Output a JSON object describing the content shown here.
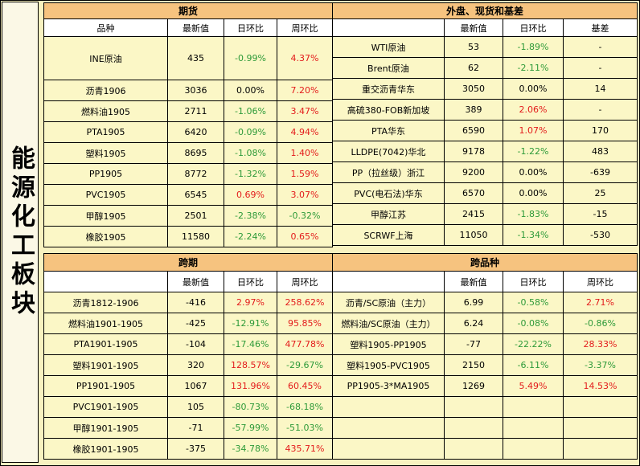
{
  "side_title": "能源化工板块",
  "futures": {
    "title": "期货",
    "columns": [
      "品种",
      "最新值",
      "日环比",
      "周环比"
    ],
    "rows": [
      [
        "INE原油",
        "435",
        "-0.99%",
        "4.37%"
      ],
      [
        "沥青1906",
        "3036",
        "0.00%",
        "7.20%"
      ],
      [
        "燃料油1905",
        "2711",
        "-1.06%",
        "3.47%"
      ],
      [
        "PTA1905",
        "6420",
        "-0.09%",
        "4.94%"
      ],
      [
        "塑料1905",
        "8695",
        "-1.08%",
        "1.40%"
      ],
      [
        "PP1905",
        "8772",
        "-1.32%",
        "1.59%"
      ],
      [
        "PVC1905",
        "6545",
        "0.69%",
        "3.07%"
      ],
      [
        "甲醇1905",
        "2501",
        "-2.38%",
        "-0.32%"
      ],
      [
        "橡胶1905",
        "11580",
        "-2.24%",
        "0.65%"
      ]
    ]
  },
  "spot": {
    "title": "外盘、现货和基差",
    "columns": [
      "",
      "最新值",
      "日环比",
      "基差"
    ],
    "rows": [
      [
        "WTI原油",
        "53",
        "-1.89%",
        "-"
      ],
      [
        "Brent原油",
        "62",
        "-2.11%",
        "-"
      ],
      [
        "重交沥青华东",
        "3050",
        "0.00%",
        "14"
      ],
      [
        "高硫380-FOB新加坡",
        "389",
        "2.06%",
        "-"
      ],
      [
        "PTA华东",
        "6590",
        "1.07%",
        "170"
      ],
      [
        "LLDPE(7042)华北",
        "9178",
        "-1.22%",
        "483"
      ],
      [
        "PP（拉丝级）浙江",
        "9200",
        "0.00%",
        "-639"
      ],
      [
        "PVC(电石法)华东",
        "6570",
        "0.00%",
        "25"
      ],
      [
        "甲醇江苏",
        "2415",
        "-1.83%",
        "-15"
      ],
      [
        "SCRWF上海",
        "11050",
        "-1.34%",
        "-530"
      ]
    ]
  },
  "spread": {
    "title": "跨期",
    "columns": [
      "",
      "最新值",
      "日环比",
      "周环比"
    ],
    "rows": [
      [
        "沥青1812-1906",
        "-416",
        "2.97%",
        "258.62%"
      ],
      [
        "燃料油1901-1905",
        "-425",
        "-12.91%",
        "95.85%"
      ],
      [
        "PTA1901-1905",
        "-104",
        "-17.46%",
        "477.78%"
      ],
      [
        "塑料1901-1905",
        "320",
        "128.57%",
        "-29.67%"
      ],
      [
        "PP1901-1905",
        "1067",
        "131.96%",
        "60.45%"
      ],
      [
        "PVC1901-1905",
        "105",
        "-80.73%",
        "-68.18%"
      ],
      [
        "甲醇1901-1905",
        "-71",
        "-57.99%",
        "-51.03%"
      ],
      [
        "橡胶1901-1905",
        "-375",
        "-34.78%",
        "435.71%"
      ]
    ]
  },
  "cross": {
    "title": "跨品种",
    "columns": [
      "",
      "最新值",
      "日环比",
      "周环比"
    ],
    "rows": [
      [
        "沥青/SC原油（主力）",
        "6.99",
        "-0.58%",
        "2.71%"
      ],
      [
        "燃料油/SC原油（主力）",
        "6.24",
        "-0.08%",
        "-0.86%"
      ],
      [
        "塑料1905-PP1905",
        "-77",
        "-22.22%",
        "28.33%"
      ],
      [
        "塑料1905-PVC1905",
        "2150",
        "-6.11%",
        "-3.37%"
      ],
      [
        "PP1905-3*MA1905",
        "1269",
        "5.49%",
        "14.53%"
      ],
      [
        "",
        "",
        "",
        ""
      ],
      [
        "",
        "",
        "",
        ""
      ],
      [
        "",
        "",
        "",
        ""
      ]
    ]
  },
  "colors": {
    "header": "#f6c37f",
    "cell": "#fbf7c6",
    "positive": "#e31b1b",
    "negative": "#2e9a39"
  }
}
